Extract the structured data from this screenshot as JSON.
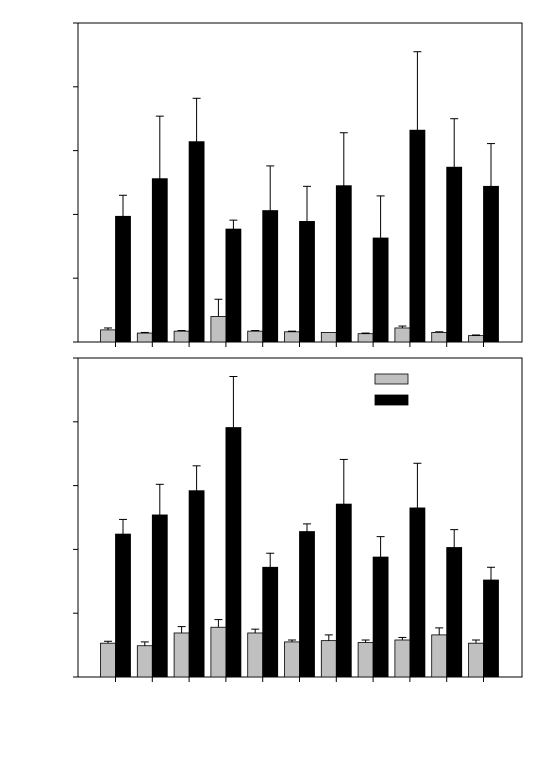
{
  "chart_data": [
    {
      "type": "bar",
      "title": "",
      "xlabel": "",
      "ylabel": "",
      "categories": [
        "",
        "",
        "",
        "",
        "",
        "",
        "",
        "",
        "",
        "",
        ""
      ],
      "ylim": [
        0,
        5
      ],
      "yticks": [
        0,
        1,
        2,
        3,
        4,
        5
      ],
      "legend_position": "none",
      "grid": false,
      "series": [
        {
          "color": "#c0c0c0",
          "values": [
            0.19,
            0.14,
            0.17,
            0.4,
            0.17,
            0.16,
            0.15,
            0.13,
            0.22,
            0.15,
            0.1
          ],
          "errors": [
            0.03,
            0.01,
            0.01,
            0.27,
            0.01,
            0.01,
            0.0,
            0.01,
            0.03,
            0.01,
            0.01
          ]
        },
        {
          "color": "#000000",
          "values": [
            1.97,
            2.56,
            3.14,
            1.77,
            2.06,
            1.89,
            2.45,
            1.63,
            3.32,
            2.74,
            2.44
          ],
          "errors": [
            0.33,
            0.98,
            0.68,
            0.14,
            0.7,
            0.55,
            0.83,
            0.66,
            1.23,
            0.76,
            0.67
          ]
        }
      ]
    },
    {
      "type": "bar",
      "title": "",
      "xlabel": "",
      "ylabel": "",
      "categories": [
        "",
        "",
        "",
        "",
        "",
        "",
        "",
        "",
        "",
        "",
        ""
      ],
      "ylim": [
        0,
        5
      ],
      "yticks": [
        0,
        1,
        2,
        3,
        4,
        5
      ],
      "legend_position": "top-right",
      "grid": false,
      "series": [
        {
          "color": "#c0c0c0",
          "values": [
            0.53,
            0.49,
            0.69,
            0.78,
            0.69,
            0.55,
            0.57,
            0.54,
            0.58,
            0.66,
            0.53
          ],
          "errors": [
            0.03,
            0.06,
            0.1,
            0.12,
            0.06,
            0.03,
            0.09,
            0.04,
            0.04,
            0.11,
            0.05
          ]
        },
        {
          "color": "#000000",
          "values": [
            2.24,
            2.54,
            2.92,
            3.91,
            1.72,
            2.28,
            2.71,
            1.88,
            2.65,
            2.03,
            1.52
          ],
          "errors": [
            0.23,
            0.48,
            0.39,
            0.8,
            0.22,
            0.12,
            0.7,
            0.32,
            0.7,
            0.28,
            0.2
          ]
        }
      ]
    }
  ]
}
